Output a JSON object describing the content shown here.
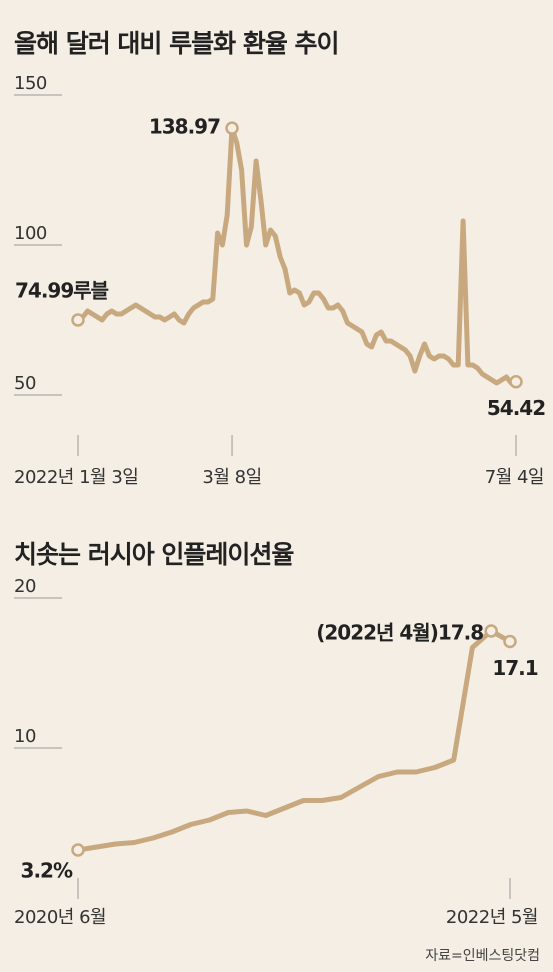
{
  "chart_data": [
    {
      "type": "line",
      "title": "올해 달러 대비 루블화 환율 추이",
      "color": "#c8a97f",
      "categories": [
        "2022년 1월 3일",
        null,
        null,
        null,
        null,
        null,
        null,
        null,
        null,
        null,
        null,
        null,
        null,
        null,
        null,
        null,
        null,
        null,
        null,
        null,
        null,
        null,
        null,
        null,
        null,
        null,
        null,
        null,
        null,
        null,
        null,
        null,
        "3월 8일",
        null,
        null,
        null,
        null,
        null,
        null,
        null,
        null,
        null,
        null,
        null,
        null,
        null,
        null,
        null,
        null,
        null,
        null,
        null,
        null,
        null,
        null,
        null,
        null,
        null,
        null,
        null,
        null,
        null,
        null,
        null,
        null,
        null,
        null,
        null,
        null,
        null,
        null,
        null,
        null,
        null,
        null,
        null,
        null,
        null,
        null,
        null,
        null,
        null,
        null,
        null,
        null,
        null,
        null,
        null,
        null,
        null,
        null,
        "7월 4일"
      ],
      "values": [
        74.99,
        76,
        78,
        77,
        76,
        75,
        77,
        78,
        77,
        77,
        78,
        79,
        80,
        79,
        78,
        77,
        76,
        76,
        75,
        76,
        77,
        75,
        74,
        77,
        79,
        80,
        81,
        81,
        82,
        104,
        100,
        110,
        138.97,
        134,
        125,
        100,
        106,
        128,
        115,
        100,
        105,
        103,
        96,
        92,
        84,
        85,
        84,
        80,
        81,
        84,
        84,
        82,
        79,
        79,
        80,
        78,
        74,
        73,
        72,
        71,
        67,
        66,
        70,
        71,
        68,
        68,
        67,
        66,
        65,
        63,
        58,
        63,
        67,
        63,
        62,
        63,
        63,
        62,
        60,
        60,
        108,
        60,
        60,
        59,
        57,
        56,
        55,
        54,
        55,
        56,
        54,
        54.42
      ],
      "value_labels": [
        "74.99루블",
        null,
        null,
        null,
        null,
        null,
        null,
        null,
        null,
        null,
        null,
        null,
        null,
        null,
        null,
        null,
        null,
        null,
        null,
        null,
        null,
        null,
        null,
        null,
        null,
        null,
        null,
        null,
        null,
        null,
        null,
        null,
        "138.97",
        null,
        null,
        null,
        null,
        null,
        null,
        null,
        null,
        null,
        null,
        null,
        null,
        null,
        null,
        null,
        null,
        null,
        null,
        null,
        null,
        null,
        null,
        null,
        null,
        null,
        null,
        null,
        null,
        null,
        null,
        null,
        null,
        null,
        null,
        null,
        null,
        null,
        null,
        null,
        null,
        null,
        null,
        null,
        null,
        null,
        null,
        null,
        null,
        null,
        null,
        null,
        null,
        null,
        null,
        null,
        null,
        null,
        null,
        "54.42"
      ],
      "ylim": [
        35,
        150
      ],
      "yticks": [
        50,
        100,
        150
      ]
    },
    {
      "type": "line",
      "title": "치솟는 러시아 인플레이션율",
      "color": "#c8a97f",
      "categories": [
        "2020년 6월",
        null,
        null,
        null,
        null,
        null,
        null,
        null,
        null,
        null,
        null,
        null,
        null,
        null,
        null,
        null,
        null,
        null,
        null,
        null,
        null,
        null,
        null,
        "2022년 5월"
      ],
      "values": [
        3.2,
        3.4,
        3.6,
        3.7,
        4.0,
        4.4,
        4.9,
        5.2,
        5.7,
        5.8,
        5.5,
        6.0,
        6.5,
        6.5,
        6.7,
        7.4,
        8.1,
        8.4,
        8.4,
        8.7,
        9.2,
        16.7,
        17.8,
        17.1
      ],
      "value_labels": [
        "3.2%",
        null,
        null,
        null,
        null,
        null,
        null,
        null,
        null,
        null,
        null,
        null,
        null,
        null,
        null,
        null,
        null,
        null,
        null,
        null,
        null,
        null,
        "(2022년 4월)17.8",
        null
      ],
      "ylim": [
        1,
        20
      ],
      "yticks": [
        10,
        20
      ]
    }
  ],
  "source": "자료=인베스팅닷컴"
}
